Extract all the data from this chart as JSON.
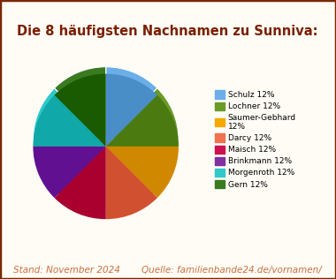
{
  "title": "Die 8 häufigsten Nachnamen zu Sunniva:",
  "title_color": "#7A2000",
  "title_fontsize": 10.5,
  "legend_labels": [
    "Schulz 12%",
    "Lochner 12%",
    "Saumer-Gebhard\n12%",
    "Darcy 12%",
    "Maisch 12%",
    "Brinkmann 12%",
    "Morgenroth 12%",
    "Gern 12%"
  ],
  "values": [
    12.5,
    12.5,
    12.5,
    12.5,
    12.5,
    12.5,
    12.5,
    12.5
  ],
  "colors": [
    "#6BAEE8",
    "#6A9A28",
    "#F5A800",
    "#F07050",
    "#CC1050",
    "#8030A0",
    "#30C8C8",
    "#3A7A20"
  ],
  "shadow_colors": [
    "#4A8EC8",
    "#4A7A10",
    "#D08800",
    "#D05030",
    "#AA0030",
    "#601090",
    "#10A8A8",
    "#1A5A00"
  ],
  "startangle": 90,
  "footer_left": "Stand: November 2024",
  "footer_right": "Quelle: familienbande24.de/vornamen/",
  "footer_color": "#C87040",
  "footer_fontsize": 7.5,
  "background_color": "#FEFCF5",
  "border_color": "#7A2800",
  "figsize": [
    3.8,
    3.16
  ],
  "dpi": 100
}
